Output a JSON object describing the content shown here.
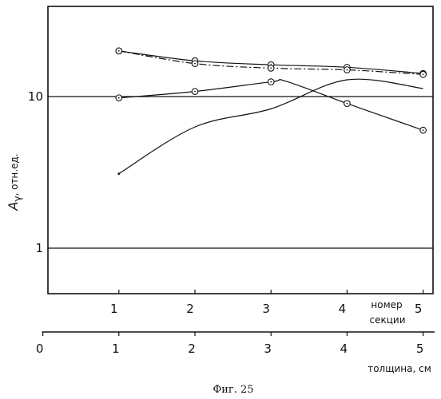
{
  "figure": {
    "caption": "Фиг. 25"
  },
  "chart_data": {
    "type": "line",
    "title": "",
    "ylabel_main": "A",
    "ylabel_sub": "γ",
    "ylabel_unit": ", отн.ед.",
    "y_scale": "log",
    "ylim": [
      0.35,
      55
    ],
    "yticks": [
      1,
      10
    ],
    "ytick_labels": [
      "1",
      "10"
    ],
    "grid": "horizontal at 1 and 10",
    "axis_sections": {
      "label_line1": "номер",
      "label_line2": "секции",
      "xlim": [
        0,
        5
      ],
      "ticks": [
        1,
        2,
        3,
        4,
        5
      ],
      "tick_labels": [
        "1",
        "2",
        "3",
        "4",
        "5"
      ]
    },
    "axis_thickness": {
      "label": "толщина, см",
      "xlim": [
        0,
        5
      ],
      "ticks": [
        0,
        1,
        2,
        3,
        4,
        5
      ],
      "tick_labels": [
        "0",
        "1",
        "2",
        "3",
        "4",
        "5"
      ]
    },
    "series": [
      {
        "style": "solid",
        "marker": "circle",
        "x": [
          1,
          2,
          3,
          4,
          5
        ],
        "y": [
          20,
          17.2,
          16.2,
          15.6,
          14.2
        ]
      },
      {
        "style": "dashdot",
        "marker": "circle",
        "x": [
          1,
          2,
          3,
          4,
          5
        ],
        "y": [
          20,
          16.5,
          15.4,
          15.0,
          14.0
        ]
      },
      {
        "style": "solid",
        "marker": "circle",
        "x": [
          1,
          2,
          3,
          3.2,
          4,
          5
        ],
        "y": [
          9.8,
          10.8,
          12.5,
          12.6,
          9.0,
          6.0
        ]
      },
      {
        "style": "solid",
        "marker": "none",
        "x": [
          1,
          2,
          3,
          4,
          5
        ],
        "y": [
          3.1,
          6.3,
          8.3,
          12.9,
          11.3
        ]
      }
    ]
  }
}
